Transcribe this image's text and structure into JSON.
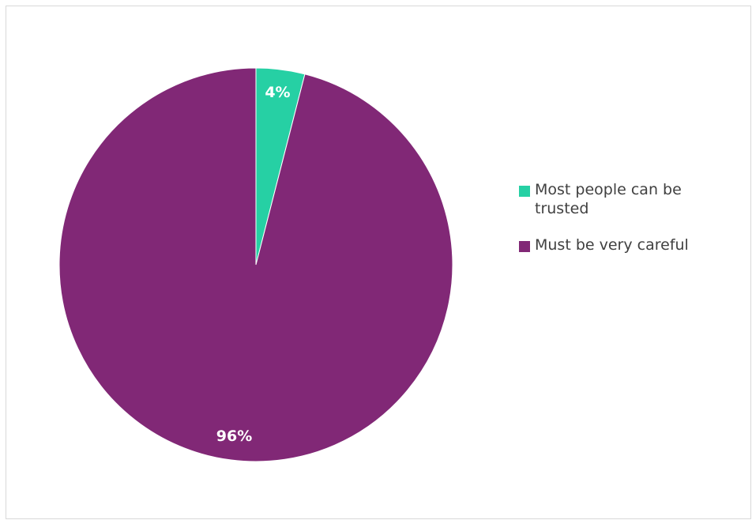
{
  "chart_data": {
    "type": "pie",
    "categories": [
      "Most people can be trusted",
      "Must be very careful"
    ],
    "values": [
      4,
      96
    ],
    "labels": [
      "4%",
      "96%"
    ],
    "colors": [
      "#26d0a4",
      "#812876"
    ],
    "legend_position": "right",
    "start_angle": "12 o'clock",
    "direction": "clockwise"
  }
}
